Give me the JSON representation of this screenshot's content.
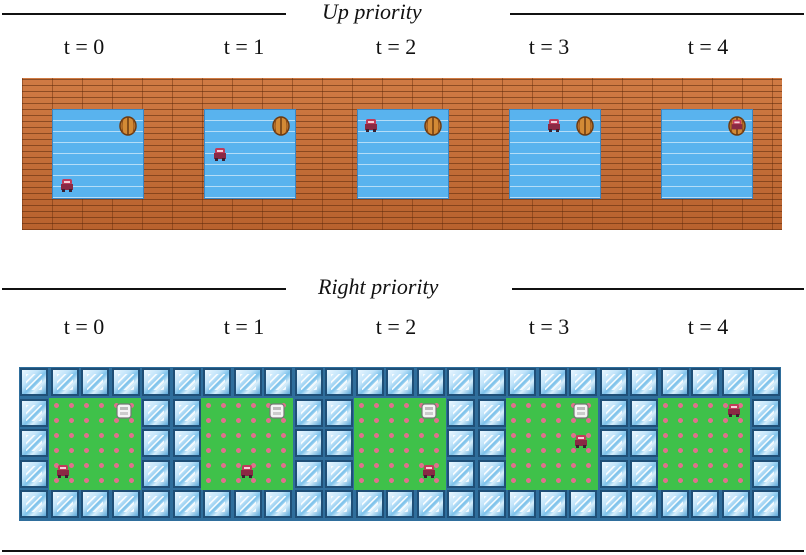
{
  "sections": [
    {
      "title": "Up priority",
      "timesteps": [
        "t = 0",
        "t = 1",
        "t = 2",
        "t = 3",
        "t = 4"
      ]
    },
    {
      "title": "Right priority",
      "timesteps": [
        "t = 0",
        "t = 1",
        "t = 2",
        "t = 3",
        "t = 4"
      ]
    }
  ],
  "icons": {
    "agent": "agent-sprite-icon",
    "barrel": "barrel-icon",
    "box": "white-box-icon"
  },
  "colors": {
    "wood": "#c9703a",
    "water": "#59b3ee",
    "ice": "#7cc1ea",
    "grass": "#3fc14a",
    "dots": "#e0708d",
    "agent": "#c23b5a"
  }
}
